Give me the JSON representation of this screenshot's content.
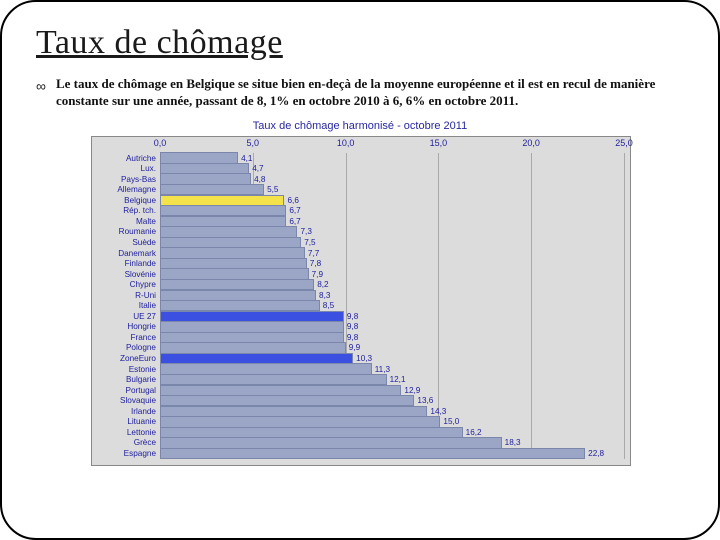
{
  "title": "Taux de chômage",
  "bullet": "Le taux de chômage en Belgique se situe bien en-deçà de la moyenne européenne et il est en recul de manière constante sur une année, passant de 8, 1% en octobre 2010 à 6, 6% en octobre 2011.",
  "chart": {
    "title": "Taux de chômage harmonisé - octobre 2011",
    "type": "bar-horizontal",
    "xlim": [
      0,
      25
    ],
    "xtick_step": 5,
    "xtick_labels": [
      "0,0",
      "5,0",
      "10,0",
      "15,0",
      "20,0",
      "25,0"
    ],
    "background_color": "#dcdcdc",
    "grid_color": "#a9a9a9",
    "default_bar_color": "#9ba6c6",
    "bar_border_color": "#7a86aa",
    "label_color": "#2020a0",
    "label_fontsize": 8.2,
    "highlight_colors": {
      "Belgique": "#f4e24a",
      "UE 27": "#3b4fe0",
      "ZoneEuro": "#3b4fe0"
    },
    "rows": [
      {
        "label": "Autriche",
        "value": 4.1,
        "text": "4,1"
      },
      {
        "label": "Lux.",
        "value": 4.7,
        "text": "4,7"
      },
      {
        "label": "Pays-Bas",
        "value": 4.8,
        "text": "4,8"
      },
      {
        "label": "Allemagne",
        "value": 5.5,
        "text": "5,5"
      },
      {
        "label": "Belgique",
        "value": 6.6,
        "text": "6,6"
      },
      {
        "label": "Rép. tch.",
        "value": 6.7,
        "text": "6,7"
      },
      {
        "label": "Malte",
        "value": 6.7,
        "text": "6,7"
      },
      {
        "label": "Roumanie",
        "value": 7.3,
        "text": "7,3"
      },
      {
        "label": "Suède",
        "value": 7.5,
        "text": "7,5"
      },
      {
        "label": "Danemark",
        "value": 7.7,
        "text": "7,7"
      },
      {
        "label": "Finlande",
        "value": 7.8,
        "text": "7,8"
      },
      {
        "label": "Slovénie",
        "value": 7.9,
        "text": "7,9"
      },
      {
        "label": "Chypre",
        "value": 8.2,
        "text": "8,2"
      },
      {
        "label": "R-Uni",
        "value": 8.3,
        "text": "8,3"
      },
      {
        "label": "Italie",
        "value": 8.5,
        "text": "8,5"
      },
      {
        "label": "UE 27",
        "value": 9.8,
        "text": "9,8"
      },
      {
        "label": "Hongrie",
        "value": 9.8,
        "text": "9,8"
      },
      {
        "label": "France",
        "value": 9.8,
        "text": "9,8"
      },
      {
        "label": "Pologne",
        "value": 9.9,
        "text": "9,9"
      },
      {
        "label": "ZoneEuro",
        "value": 10.3,
        "text": "10,3"
      },
      {
        "label": "Estonie",
        "value": 11.3,
        "text": "11,3"
      },
      {
        "label": "Bulgarie",
        "value": 12.1,
        "text": "12,1"
      },
      {
        "label": "Portugal",
        "value": 12.9,
        "text": "12,9"
      },
      {
        "label": "Slovaquie",
        "value": 13.6,
        "text": "13,6"
      },
      {
        "label": "Irlande",
        "value": 14.3,
        "text": "14,3"
      },
      {
        "label": "Lituanie",
        "value": 15.0,
        "text": "15,0"
      },
      {
        "label": "Lettonie",
        "value": 16.2,
        "text": "16,2"
      },
      {
        "label": "Grèce",
        "value": 18.3,
        "text": "18,3"
      },
      {
        "label": "Espagne",
        "value": 22.8,
        "text": "22,8"
      }
    ]
  }
}
